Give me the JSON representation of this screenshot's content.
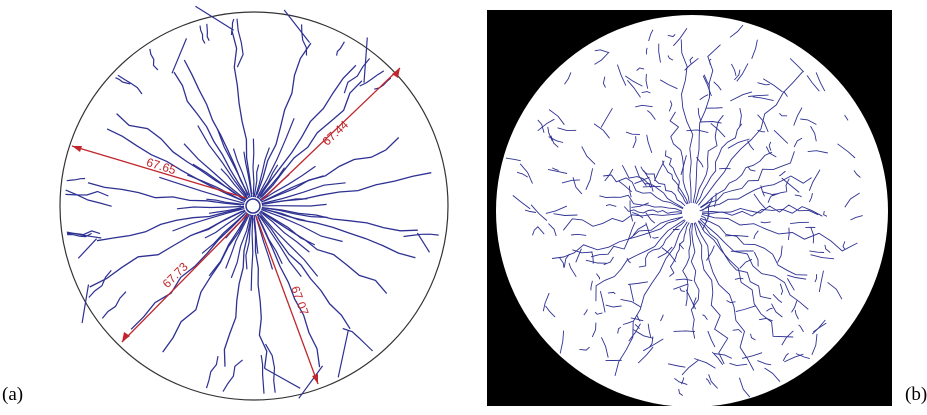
{
  "panels": {
    "left": {
      "label": "(a)",
      "measurements": [
        "67.65",
        "67.44",
        "67.73",
        "67.07"
      ]
    },
    "right": {
      "label": "(b)"
    }
  },
  "colors": {
    "crack": "#2e3192",
    "dimension": "#c0272d",
    "outline": "#333333",
    "background_b": "#000000"
  }
}
